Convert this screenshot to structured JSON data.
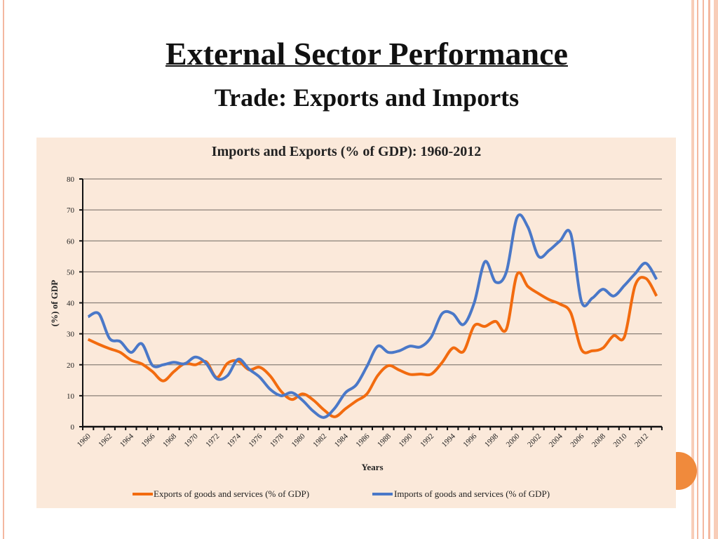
{
  "slide": {
    "title": "External Sector Performance",
    "subtitle": "Trade: Exports and Imports"
  },
  "chart_data": {
    "type": "line",
    "title": "Imports and Exports (% of GDP): 1960-2012",
    "xlabel": "Years",
    "ylabel": "(%) of GDP",
    "ylim": [
      0,
      80
    ],
    "yticks": [
      0,
      10,
      20,
      30,
      40,
      50,
      60,
      70,
      80
    ],
    "grid": true,
    "smoothed": true,
    "legend_position": "bottom",
    "x": [
      1960,
      1961,
      1962,
      1963,
      1964,
      1965,
      1966,
      1967,
      1968,
      1969,
      1970,
      1971,
      1972,
      1973,
      1974,
      1975,
      1976,
      1977,
      1978,
      1979,
      1980,
      1981,
      1982,
      1983,
      1984,
      1985,
      1986,
      1987,
      1988,
      1989,
      1990,
      1991,
      1992,
      1993,
      1994,
      1995,
      1996,
      1997,
      1998,
      1999,
      2000,
      2001,
      2002,
      2003,
      2004,
      2005,
      2006,
      2007,
      2008,
      2009,
      2010,
      2011,
      2012,
      2013
    ],
    "xtick_labels": [
      "1960",
      "1962",
      "1964",
      "1966",
      "1968",
      "1970",
      "1972",
      "1974",
      "1976",
      "1978",
      "1980",
      "1982",
      "1984",
      "1986",
      "1988",
      "1990",
      "1992",
      "1994",
      "1996",
      "1998",
      "2000",
      "2002",
      "2004",
      "2006",
      "2008",
      "2010",
      "2012"
    ],
    "series": [
      {
        "name": "Exports of goods and services (% of GDP)",
        "color": "#f26b0f",
        "values": [
          28.2,
          26.6,
          25.2,
          24,
          21.5,
          20.3,
          17.8,
          14.8,
          17.8,
          20.4,
          20,
          21,
          15.9,
          20.5,
          21.2,
          18.4,
          19.2,
          16.3,
          11.4,
          8.8,
          10.6,
          8.6,
          5.4,
          3.2,
          5.8,
          8.3,
          10.6,
          16.5,
          19.7,
          18.3,
          16.9,
          17,
          17,
          20.7,
          25.4,
          24.3,
          32.6,
          32.4,
          34,
          31.5,
          49.2,
          45.3,
          43,
          41,
          39.6,
          36.8,
          24.9,
          24.5,
          25.4,
          29.4,
          29,
          45.6,
          47.9,
          42.2
        ]
      },
      {
        "name": "Imports of goods and services (% of GDP)",
        "color": "#4a78c8",
        "values": [
          35.5,
          36.5,
          28.5,
          27.5,
          24,
          26.8,
          19.8,
          20,
          20.8,
          20.3,
          22.5,
          20.5,
          15.5,
          16.5,
          21.8,
          18.6,
          16,
          12,
          10,
          11,
          8.5,
          5,
          3,
          6,
          11,
          13.5,
          19.5,
          26,
          24,
          24.5,
          26,
          25.8,
          29,
          36.5,
          36.5,
          33,
          40,
          53.3,
          46.7,
          50,
          67.6,
          64.5,
          55,
          57,
          60,
          62.3,
          40.4,
          41.5,
          44.4,
          42.2,
          45.6,
          49.4,
          52.8,
          47.6
        ]
      }
    ]
  }
}
